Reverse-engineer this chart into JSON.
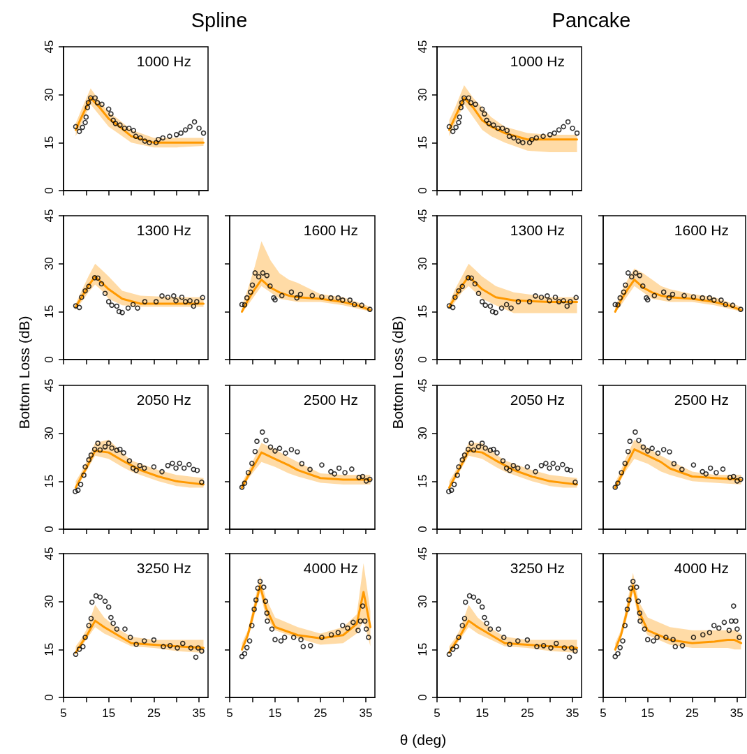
{
  "chart_data": [
    {
      "type": "scatter",
      "title": "Spline",
      "annotations": [
        "1000 Hz"
      ],
      "xlim": [
        5,
        37
      ],
      "ylim": [
        0,
        45
      ],
      "xticks": [
        5,
        {
          "value": 10,
          "label": null
        },
        15,
        {
          "value": 20,
          "label": null
        },
        25,
        {
          "value": 30,
          "label": null
        },
        35
      ],
      "yticks": [
        0,
        15,
        30,
        45
      ],
      "tick_labels": "y",
      "series": [
        {
          "type": "line",
          "color": "#ff9900",
          "x": [
            7.7,
            9,
            11,
            13,
            15,
            17,
            20,
            25,
            30,
            36
          ],
          "values": [
            19,
            23,
            29,
            26,
            22.5,
            20.5,
            17,
            15,
            15,
            15
          ],
          "lower": [
            17,
            21,
            27,
            23.5,
            20,
            18,
            15,
            13.5,
            13.5,
            14
          ],
          "upper": [
            21,
            25.5,
            32,
            28,
            24.5,
            22.5,
            19,
            16.5,
            16.5,
            16.5
          ]
        },
        {
          "type": "scatter",
          "color": "#000000",
          "marker": "circle",
          "x": [
            7.7,
            8.5,
            9.2,
            9.8,
            10.0,
            10.3,
            10.5,
            11,
            12,
            12.5,
            13.5,
            15,
            15.5,
            16,
            16.5,
            17.5,
            18.5,
            19.5,
            20.5,
            21,
            22,
            23,
            24,
            25.5,
            26,
            27,
            28.5,
            30,
            31,
            32,
            33,
            34,
            35,
            36
          ],
          "values": [
            20,
            18.5,
            19.8,
            21.3,
            23,
            26,
            27.5,
            29,
            29,
            27.5,
            27,
            25.5,
            24,
            22,
            21,
            20.5,
            19.5,
            19.5,
            18.8,
            17,
            16.5,
            15.5,
            15,
            15,
            16,
            16.5,
            17,
            17.5,
            18,
            19,
            20,
            21.5,
            19.5,
            18
          ]
        }
      ]
    },
    {
      "type": "scatter",
      "title": "Pancake",
      "annotations": [
        "1000 Hz"
      ],
      "xlim": [
        5,
        37
      ],
      "ylim": [
        0,
        45
      ],
      "xticks": [
        5,
        {
          "value": 10,
          "label": null
        },
        15,
        {
          "value": 20,
          "label": null
        },
        25,
        {
          "value": 30,
          "label": null
        },
        35
      ],
      "yticks": [
        0,
        15,
        30,
        45
      ],
      "tick_labels": "y",
      "series": [
        {
          "type": "line",
          "color": "#ff9900",
          "x": [
            7.7,
            9,
            11,
            13,
            15,
            17,
            20,
            25,
            30,
            36
          ],
          "values": [
            19,
            23,
            29,
            26,
            22,
            20,
            18,
            16,
            16,
            16
          ],
          "lower": [
            17,
            21,
            27,
            23,
            19,
            17,
            15,
            12.5,
            12,
            12
          ],
          "upper": [
            22,
            26,
            33,
            29,
            26,
            23,
            20,
            18,
            17.5,
            17.5
          ]
        },
        {
          "type": "scatter",
          "color": "#000000",
          "marker": "circle",
          "x": [
            7.7,
            8.5,
            9.2,
            9.8,
            10.0,
            10.3,
            10.5,
            11,
            12,
            12.5,
            13.5,
            15,
            15.5,
            16,
            16.5,
            17.5,
            18.5,
            19.5,
            20.5,
            21,
            22,
            23,
            24,
            25.5,
            26,
            27,
            28.5,
            30,
            31,
            32,
            33,
            34,
            35,
            36
          ],
          "values": [
            20,
            18.5,
            19.8,
            21.3,
            23,
            26,
            27.5,
            29,
            29,
            27.5,
            27,
            25.5,
            24,
            22,
            21,
            20.5,
            19.5,
            19.5,
            18.8,
            17,
            16.5,
            15.5,
            15,
            15,
            16,
            16.5,
            17,
            17.5,
            18,
            19,
            20,
            21.5,
            19.5,
            18
          ]
        }
      ]
    },
    {
      "type": "scatter",
      "ylabel": "Bottom Loss (dB)",
      "annotations": [
        "1300 Hz"
      ],
      "xlim": [
        5,
        37
      ],
      "ylim": [
        0,
        45
      ],
      "xticks": [
        5,
        {
          "value": 10,
          "label": null
        },
        15,
        {
          "value": 20,
          "label": null
        },
        25,
        {
          "value": 30,
          "label": null
        },
        35
      ],
      "yticks": [
        0,
        15,
        30,
        45
      ],
      "tick_labels": "y",
      "series": [
        {
          "type": "line",
          "color": "#ff9900",
          "x": [
            7.7,
            9,
            10.5,
            12,
            13.5,
            15,
            18,
            22,
            30,
            36
          ],
          "values": [
            16.5,
            19.5,
            23,
            26,
            24,
            22,
            19,
            17.5,
            17.5,
            17.5
          ],
          "lower": [
            15.5,
            18,
            21,
            23.5,
            21.5,
            19,
            17,
            16.5,
            16.5,
            16.5
          ],
          "upper": [
            17.5,
            21.5,
            26,
            30,
            28,
            26,
            21.5,
            20,
            19.5,
            19.5
          ]
        },
        {
          "type": "scatter",
          "color": "#000000",
          "marker": "circle",
          "x": [
            7.7,
            8.5,
            9,
            9.8,
            10.6,
            11.9,
            12.6,
            13.4,
            14.2,
            15,
            15.7,
            16.8,
            17.3,
            18,
            19.3,
            20.4,
            21.4,
            23,
            25.5,
            26.8,
            28.1,
            29.4,
            29.9,
            31.2,
            32,
            33,
            33.8,
            34.5,
            35.8
          ],
          "values": [
            16.8,
            16.3,
            19.5,
            21.5,
            22.9,
            25.6,
            25.5,
            23.7,
            20.7,
            18.1,
            17,
            16.7,
            15,
            14.7,
            16.1,
            17.2,
            16.1,
            18.1,
            18.1,
            19.9,
            19.5,
            19.9,
            18.4,
            19.5,
            18.1,
            18.4,
            16.7,
            18.1,
            19.4
          ]
        }
      ]
    },
    {
      "type": "scatter",
      "annotations": [
        "1600 Hz"
      ],
      "xlim": [
        5,
        37
      ],
      "ylim": [
        0,
        45
      ],
      "xticks": [
        5,
        {
          "value": 10,
          "label": null
        },
        15,
        {
          "value": 20,
          "label": null
        },
        25,
        {
          "value": 30,
          "label": null
        },
        35
      ],
      "yticks": [
        0,
        15,
        30,
        45
      ],
      "tick_labels": false,
      "series": [
        {
          "type": "line",
          "color": "#ff9900",
          "x": [
            7.7,
            9,
            10.5,
            12,
            14,
            16,
            18,
            20,
            25,
            30,
            33,
            36
          ],
          "values": [
            15,
            18.5,
            22,
            25,
            22.5,
            21,
            20,
            19.5,
            19,
            18,
            17,
            15.5
          ],
          "lower": [
            14.5,
            17,
            20,
            23,
            21,
            19,
            18.5,
            18,
            18,
            17,
            16,
            15
          ],
          "upper": [
            17,
            22,
            29,
            37,
            31,
            27,
            25,
            24,
            20.5,
            19.5,
            18,
            16.5
          ]
        },
        {
          "type": "scatter",
          "color": "#000000",
          "marker": "circle",
          "x": [
            7.7,
            8.3,
            8.8,
            9.6,
            10,
            10.6,
            11.4,
            12.3,
            13.2,
            13.9,
            14.7,
            15,
            16.5,
            18.6,
            19.8,
            20.6,
            23.2,
            25.3,
            27.3,
            28.9,
            29.9,
            31.5,
            32.5,
            34.1,
            35.9
          ],
          "values": [
            17.2,
            17.1,
            19.3,
            21.1,
            23.3,
            27.1,
            25.9,
            27.1,
            26.3,
            23,
            19.3,
            18.7,
            20,
            21.1,
            19.3,
            20.4,
            20,
            19.6,
            19.3,
            19.3,
            18.6,
            18.6,
            17.2,
            17,
            15.7
          ]
        }
      ]
    },
    {
      "type": "scatter",
      "ylabel": "Bottom Loss (dB)",
      "annotations": [
        "1300 Hz"
      ],
      "xlim": [
        5,
        37
      ],
      "ylim": [
        0,
        45
      ],
      "xticks": [
        5,
        {
          "value": 10,
          "label": null
        },
        15,
        {
          "value": 20,
          "label": null
        },
        25,
        {
          "value": 30,
          "label": null
        },
        35
      ],
      "yticks": [
        0,
        15,
        30,
        45
      ],
      "tick_labels": "y",
      "series": [
        {
          "type": "line",
          "color": "#ff9900",
          "x": [
            7.7,
            9,
            10.5,
            12,
            13.5,
            15,
            18,
            22,
            30,
            36
          ],
          "values": [
            16.5,
            19.5,
            23,
            26,
            24,
            22,
            19.5,
            18.5,
            18,
            18
          ],
          "lower": [
            15.5,
            18,
            21,
            23,
            21,
            19,
            17,
            14.5,
            14.5,
            14.5
          ],
          "upper": [
            17.5,
            22,
            26,
            30,
            28,
            26,
            23,
            21,
            19.5,
            19.5
          ]
        },
        {
          "type": "scatter",
          "color": "#000000",
          "marker": "circle",
          "x": [
            7.7,
            8.5,
            9,
            9.8,
            10.6,
            11.9,
            12.6,
            13.4,
            14.2,
            15,
            15.7,
            16.8,
            17.3,
            18,
            19.3,
            20.4,
            21.4,
            23,
            25.5,
            26.8,
            28.1,
            29.4,
            29.9,
            31.2,
            32,
            33,
            33.8,
            34.5,
            35.8
          ],
          "values": [
            16.8,
            16.3,
            19.5,
            21.5,
            22.9,
            25.6,
            25.5,
            23.7,
            20.7,
            18.1,
            17,
            16.7,
            15,
            14.7,
            16.1,
            17.2,
            16.1,
            18.1,
            18.1,
            19.9,
            19.5,
            19.9,
            18.4,
            19.5,
            18.1,
            18.4,
            16.7,
            18.1,
            19.4
          ]
        }
      ]
    },
    {
      "type": "scatter",
      "annotations": [
        "1600 Hz"
      ],
      "xlim": [
        5,
        37
      ],
      "ylim": [
        0,
        45
      ],
      "xticks": [
        5,
        {
          "value": 10,
          "label": null
        },
        15,
        {
          "value": 20,
          "label": null
        },
        25,
        {
          "value": 30,
          "label": null
        },
        35
      ],
      "yticks": [
        0,
        15,
        30,
        45
      ],
      "tick_labels": false,
      "series": [
        {
          "type": "line",
          "color": "#ff9900",
          "x": [
            7.7,
            9,
            10.5,
            12,
            14,
            16,
            18,
            20,
            25,
            30,
            33,
            36
          ],
          "values": [
            15,
            18.5,
            22,
            25,
            22.5,
            21,
            20,
            19.5,
            19,
            18,
            17,
            15.5
          ],
          "lower": [
            14.5,
            17,
            20,
            23,
            21,
            19,
            18.5,
            18,
            18,
            17,
            16,
            15
          ],
          "upper": [
            16.5,
            21,
            25,
            28.5,
            27,
            25,
            23,
            22,
            20.5,
            19.5,
            18,
            16.5
          ]
        },
        {
          "type": "scatter",
          "color": "#000000",
          "marker": "circle",
          "x": [
            7.7,
            8.3,
            8.8,
            9.6,
            10,
            10.6,
            11.4,
            12.3,
            13.2,
            13.9,
            14.7,
            15,
            16.5,
            18.6,
            19.8,
            20.6,
            23.2,
            25.3,
            27.3,
            28.9,
            29.9,
            31.5,
            32.5,
            34.1,
            35.9
          ],
          "values": [
            17.2,
            17.1,
            19.3,
            21.1,
            23.3,
            27.1,
            25.9,
            27.1,
            26.3,
            23,
            19.3,
            18.7,
            20,
            21.1,
            19.3,
            20.4,
            20,
            19.6,
            19.3,
            19.3,
            18.6,
            18.6,
            17.2,
            17,
            15.7
          ]
        }
      ]
    },
    {
      "type": "scatter",
      "annotations": [
        "2050 Hz"
      ],
      "xlim": [
        5,
        37
      ],
      "ylim": [
        0,
        45
      ],
      "xticks": [
        5,
        {
          "value": 10,
          "label": null
        },
        15,
        {
          "value": 20,
          "label": null
        },
        25,
        {
          "value": 30,
          "label": null
        },
        35
      ],
      "yticks": [
        0,
        15,
        30,
        45
      ],
      "tick_labels": "y",
      "series": [
        {
          "type": "line",
          "color": "#ff9900",
          "x": [
            7.7,
            9,
            10,
            12,
            15,
            18,
            20,
            22,
            26,
            30,
            33,
            36
          ],
          "values": [
            13,
            16.5,
            19,
            24.5,
            24,
            21.5,
            20,
            18.5,
            16.5,
            15,
            14.5,
            14
          ],
          "lower": [
            12.5,
            15.5,
            18,
            23,
            22,
            19.5,
            18,
            17,
            15,
            13.5,
            13,
            13
          ],
          "upper": [
            15,
            18,
            21,
            27,
            28,
            24,
            21.5,
            20.5,
            18.5,
            17,
            16.5,
            16
          ]
        },
        {
          "type": "scatter",
          "color": "#000000",
          "marker": "circle",
          "x": [
            7.6,
            8.2,
            8.8,
            9.5,
            9.8,
            10.6,
            11.1,
            11.9,
            12.6,
            13.1,
            14.2,
            15,
            15.7,
            16.8,
            17.5,
            18.3,
            19.6,
            20.4,
            21.1,
            21.9,
            22.9,
            25,
            26.8,
            28.1,
            29.1,
            29.9,
            30.7,
            31.7,
            32.8,
            33.8,
            34.6,
            35.6
          ],
          "values": [
            11.8,
            12.2,
            14,
            16.9,
            19.5,
            21.7,
            23.2,
            25,
            26.9,
            24.8,
            25.8,
            26.9,
            25.4,
            24.7,
            25,
            23.9,
            21.4,
            19.1,
            18.4,
            19.9,
            19.1,
            19.5,
            18,
            19.9,
            20.6,
            19.1,
            20.6,
            19.1,
            20.2,
            18.7,
            18.4,
            14.7
          ]
        }
      ]
    },
    {
      "type": "scatter",
      "annotations": [
        "2500 Hz"
      ],
      "xlim": [
        5,
        37
      ],
      "ylim": [
        0,
        45
      ],
      "xticks": [
        5,
        {
          "value": 10,
          "label": null
        },
        15,
        {
          "value": 20,
          "label": null
        },
        25,
        {
          "value": 30,
          "label": null
        },
        35
      ],
      "yticks": [
        0,
        15,
        30,
        45
      ],
      "tick_labels": false,
      "series": [
        {
          "type": "line",
          "color": "#ff9900",
          "x": [
            7.7,
            9,
            10,
            12,
            15,
            18,
            20,
            25,
            30,
            36
          ],
          "values": [
            13,
            16.5,
            19,
            24,
            22,
            20,
            18.5,
            16,
            15.5,
            15.5
          ],
          "lower": [
            12.5,
            15.5,
            17.5,
            21,
            19.5,
            17.5,
            16.5,
            14.5,
            14,
            14
          ],
          "upper": [
            14.5,
            18,
            21,
            27,
            25,
            22.5,
            21,
            17.5,
            17,
            17
          ]
        },
        {
          "type": "scatter",
          "color": "#000000",
          "marker": "circle",
          "x": [
            7.7,
            8.3,
            9.1,
            9.9,
            10.6,
            11,
            12.2,
            13,
            14,
            15,
            16,
            17.3,
            18.6,
            19.9,
            20.9,
            22.7,
            25.3,
            27.3,
            28.1,
            29.1,
            30.4,
            31.9,
            33.5,
            34.3,
            35.1,
            35.9
          ],
          "values": [
            13.1,
            14.4,
            17.7,
            20.6,
            24.3,
            27.5,
            30.4,
            27.8,
            25.7,
            24.5,
            25.3,
            23.8,
            24.9,
            24.2,
            20.5,
            18.7,
            20.1,
            18,
            17.3,
            19.1,
            17.7,
            18.8,
            16.2,
            16.5,
            15.1,
            15.6
          ]
        }
      ]
    },
    {
      "type": "scatter",
      "annotations": [
        "2050 Hz"
      ],
      "xlim": [
        5,
        37
      ],
      "ylim": [
        0,
        45
      ],
      "xticks": [
        5,
        {
          "value": 10,
          "label": null
        },
        15,
        {
          "value": 20,
          "label": null
        },
        25,
        {
          "value": 30,
          "label": null
        },
        35
      ],
      "yticks": [
        0,
        15,
        30,
        45
      ],
      "tick_labels": "y",
      "series": [
        {
          "type": "line",
          "color": "#ff9900",
          "x": [
            7.7,
            9,
            10,
            12,
            15,
            18,
            20,
            22,
            26,
            30,
            33,
            36
          ],
          "values": [
            13,
            16.5,
            19,
            24.5,
            24,
            21.5,
            20,
            18.5,
            16.5,
            15,
            14.5,
            14
          ],
          "lower": [
            12.5,
            15.5,
            18,
            23,
            22,
            19.5,
            18,
            17,
            15,
            13.5,
            13,
            13
          ],
          "upper": [
            15,
            18,
            21,
            27,
            27,
            23.5,
            21.5,
            20.5,
            18.5,
            17,
            16.5,
            16
          ]
        },
        {
          "type": "scatter",
          "color": "#000000",
          "marker": "circle",
          "x": [
            7.6,
            8.2,
            8.8,
            9.5,
            9.8,
            10.6,
            11.1,
            11.9,
            12.6,
            13.1,
            14.2,
            15,
            15.7,
            16.8,
            17.5,
            18.3,
            19.6,
            20.4,
            21.1,
            21.9,
            22.9,
            25,
            26.8,
            28.1,
            29.1,
            29.9,
            30.7,
            31.7,
            32.8,
            33.8,
            34.6,
            35.6
          ],
          "values": [
            11.8,
            12.2,
            14,
            16.9,
            19.5,
            21.7,
            23.2,
            25,
            26.9,
            24.8,
            25.8,
            26.9,
            25.4,
            24.7,
            25,
            23.9,
            21.4,
            19.1,
            18.4,
            19.9,
            19.1,
            19.5,
            18,
            19.9,
            20.6,
            19.1,
            20.6,
            19.1,
            20.2,
            18.7,
            18.4,
            14.7
          ]
        }
      ]
    },
    {
      "type": "scatter",
      "annotations": [
        "2500 Hz"
      ],
      "xlim": [
        5,
        37
      ],
      "ylim": [
        0,
        45
      ],
      "xticks": [
        5,
        {
          "value": 10,
          "label": null
        },
        15,
        {
          "value": 20,
          "label": null
        },
        25,
        {
          "value": 30,
          "label": null
        },
        35
      ],
      "yticks": [
        0,
        15,
        30,
        45
      ],
      "tick_labels": false,
      "series": [
        {
          "type": "line",
          "color": "#ff9900",
          "x": [
            7.7,
            9,
            10,
            12,
            15,
            18,
            20,
            25,
            30,
            36
          ],
          "values": [
            13,
            16.5,
            19.5,
            25,
            23,
            21,
            19,
            16.5,
            16,
            15.5
          ],
          "lower": [
            12.5,
            15.5,
            18,
            22,
            20.5,
            18,
            17,
            15,
            14.5,
            14
          ],
          "upper": [
            14.5,
            18.5,
            22,
            28,
            25.5,
            23,
            21.5,
            18,
            17,
            17
          ]
        },
        {
          "type": "scatter",
          "color": "#000000",
          "marker": "circle",
          "x": [
            7.7,
            8.3,
            9.1,
            9.9,
            10.6,
            11,
            12.2,
            13,
            14,
            15,
            16,
            17.3,
            18.6,
            19.9,
            20.9,
            22.7,
            25.3,
            27.3,
            28.1,
            29.1,
            30.4,
            31.9,
            33.5,
            34.3,
            35.1,
            35.9
          ],
          "values": [
            13.1,
            14.4,
            17.7,
            20.6,
            24.3,
            27.5,
            30.4,
            27.8,
            25.7,
            24.5,
            25.3,
            23.8,
            24.9,
            24.2,
            20.5,
            18.7,
            20.1,
            18,
            17.3,
            19.1,
            17.7,
            18.8,
            16.2,
            16.5,
            15.1,
            15.6
          ]
        }
      ]
    },
    {
      "type": "scatter",
      "annotations": [
        "3250 Hz"
      ],
      "xlim": [
        5,
        37
      ],
      "ylim": [
        0,
        45
      ],
      "xticks": [
        5,
        {
          "value": 10,
          "label": null
        },
        15,
        {
          "value": 20,
          "label": null
        },
        25,
        {
          "value": 30,
          "label": null
        },
        35
      ],
      "yticks": [
        0,
        15,
        30,
        45
      ],
      "series": [
        {
          "type": "line",
          "color": "#ff9900",
          "x": [
            7.7,
            9,
            10,
            12,
            14,
            17,
            20,
            25,
            30,
            36
          ],
          "values": [
            14,
            17,
            19,
            24,
            22,
            19.5,
            17,
            16.5,
            16,
            15.5
          ],
          "lower": [
            13.5,
            16,
            18,
            22,
            20,
            18,
            16,
            15.5,
            14.5,
            14
          ],
          "upper": [
            16,
            18.5,
            21,
            29,
            25,
            21.5,
            19,
            18,
            18,
            18
          ]
        },
        {
          "type": "scatter",
          "color": "#000000",
          "marker": "circle",
          "x": [
            7.7,
            8.5,
            9.3,
            9.8,
            10.6,
            11.1,
            11.3,
            12.2,
            13.1,
            14.2,
            15,
            15.5,
            16,
            16.8,
            18.6,
            19.8,
            21.1,
            22.9,
            25,
            27.1,
            28.6,
            30.2,
            31.4,
            33.2,
            34.3,
            34.8,
            35.6
          ],
          "values": [
            13.5,
            15.1,
            15.9,
            18.8,
            22.5,
            24.7,
            29.8,
            31.8,
            31.4,
            30.1,
            28.3,
            25,
            23.2,
            21.4,
            21.4,
            18.8,
            16.6,
            17.7,
            18,
            15.9,
            16.2,
            15.5,
            16.9,
            15.5,
            12.6,
            15.5,
            14.5
          ]
        }
      ]
    },
    {
      "type": "scatter",
      "annotations": [
        "4000 Hz"
      ],
      "xlim": [
        5,
        37
      ],
      "ylim": [
        0,
        45
      ],
      "xticks": [
        5,
        {
          "value": 10,
          "label": null
        },
        15,
        {
          "value": 20,
          "label": null
        },
        25,
        {
          "value": 30,
          "label": null
        },
        35
      ],
      "yticks": [
        0,
        15,
        30,
        45
      ],
      "tick_labels": "x",
      "series": [
        {
          "type": "line",
          "color": "#ff9900",
          "x": [
            7.7,
            9,
            10,
            11.7,
            13,
            15,
            20,
            25,
            30,
            33,
            34.5,
            36
          ],
          "values": [
            15,
            19.5,
            25,
            35,
            28,
            22,
            19.5,
            18.5,
            19.5,
            23,
            33,
            22
          ],
          "lower": [
            14,
            18.5,
            23,
            33,
            25,
            21,
            18.5,
            16.5,
            17,
            20,
            24,
            16
          ],
          "upper": [
            17,
            21,
            27,
            38,
            31,
            25,
            22,
            20,
            22,
            26,
            42,
            27
          ]
        },
        {
          "type": "scatter",
          "color": "#000000",
          "marker": "circle",
          "x": [
            7.7,
            8.3,
            8.8,
            9.4,
            9.9,
            10.4,
            10.8,
            11.2,
            11.7,
            12.5,
            12.9,
            13.2,
            13.3,
            14.3,
            15,
            16.3,
            17.1,
            19.1,
            20.7,
            21.2,
            22.8,
            25.3,
            27.4,
            28.9,
            29.9,
            31,
            32.2,
            33.3,
            33.8,
            34.3,
            34.8,
            35.1,
            35.6
          ],
          "values": [
            12.8,
            13.7,
            15.6,
            17.7,
            22.5,
            27.6,
            30.5,
            34.2,
            36.3,
            34.5,
            30.1,
            26.4,
            23.9,
            21.4,
            18.1,
            17.7,
            18.8,
            18.8,
            18.1,
            15.9,
            16.2,
            18.8,
            19.6,
            20.3,
            22.5,
            21.7,
            23.5,
            21,
            23.9,
            28.6,
            23.9,
            21.4,
            18.8
          ]
        }
      ]
    },
    {
      "type": "scatter",
      "xlabel": "θ (deg)",
      "annotations": [
        "3250 Hz"
      ],
      "xlim": [
        5,
        37
      ],
      "ylim": [
        0,
        45
      ],
      "xticks": [
        5,
        {
          "value": 10,
          "label": null
        },
        15,
        {
          "value": 20,
          "label": null
        },
        25,
        {
          "value": 30,
          "label": null
        },
        35
      ],
      "yticks": [
        0,
        15,
        30,
        45
      ],
      "series": [
        {
          "type": "line",
          "color": "#ff9900",
          "x": [
            7.7,
            9,
            10,
            12,
            14,
            17,
            20,
            25,
            30,
            36
          ],
          "values": [
            14,
            17,
            19,
            24,
            22,
            19.5,
            17,
            16.5,
            16,
            15.5
          ],
          "lower": [
            13.5,
            16,
            18,
            22,
            20,
            18,
            16,
            15.5,
            14.5,
            14
          ],
          "upper": [
            16,
            18.5,
            21,
            29,
            25,
            21.5,
            19,
            18,
            18,
            18
          ]
        },
        {
          "type": "scatter",
          "color": "#000000",
          "marker": "circle",
          "x": [
            7.7,
            8.5,
            9.3,
            9.8,
            10.6,
            11.1,
            11.3,
            12.2,
            13.1,
            14.2,
            15,
            15.5,
            16,
            16.8,
            18.6,
            19.8,
            21.1,
            22.9,
            25,
            27.1,
            28.6,
            30.2,
            31.4,
            33.2,
            34.3,
            34.8,
            35.6
          ],
          "values": [
            13.5,
            15.1,
            15.9,
            18.8,
            22.5,
            24.7,
            29.8,
            31.8,
            31.4,
            30.1,
            28.3,
            25,
            23.2,
            21.4,
            21.4,
            18.8,
            16.6,
            17.7,
            18,
            15.9,
            16.2,
            15.5,
            16.9,
            15.5,
            12.6,
            15.5,
            14.5
          ]
        }
      ]
    },
    {
      "type": "scatter",
      "annotations": [
        "4000 Hz"
      ],
      "xlim": [
        5,
        37
      ],
      "ylim": [
        0,
        45
      ],
      "xticks": [
        5,
        {
          "value": 10,
          "label": null
        },
        15,
        {
          "value": 20,
          "label": null
        },
        25,
        {
          "value": 30,
          "label": null
        },
        35
      ],
      "yticks": [
        0,
        15,
        30,
        45
      ],
      "tick_labels": "x",
      "series": [
        {
          "type": "line",
          "color": "#ff9900",
          "x": [
            7.7,
            9,
            10,
            11.7,
            13,
            15,
            20,
            25,
            30,
            33,
            34.5,
            36
          ],
          "values": [
            15,
            19.5,
            25,
            35,
            27,
            21,
            18,
            17,
            17.5,
            18,
            18,
            17
          ],
          "lower": [
            14,
            18.5,
            23,
            33,
            24,
            19.5,
            16.5,
            15.5,
            15.5,
            15.5,
            15,
            15
          ],
          "upper": [
            17,
            21,
            27,
            39,
            30,
            25,
            22,
            21,
            21,
            21,
            21,
            20
          ]
        },
        {
          "type": "scatter",
          "color": "#000000",
          "marker": "circle",
          "x": [
            7.7,
            8.3,
            8.8,
            9.4,
            9.9,
            10.4,
            10.8,
            11.2,
            11.7,
            12.5,
            12.9,
            13.2,
            13.3,
            14.3,
            15,
            16.3,
            17.1,
            19.1,
            20.7,
            21.2,
            22.8,
            25.3,
            27.4,
            28.9,
            29.9,
            31,
            32.2,
            33.3,
            33.8,
            34.3,
            34.8,
            35.1,
            35.6
          ],
          "values": [
            12.8,
            13.7,
            15.6,
            17.7,
            22.5,
            27.6,
            30.5,
            34.2,
            36.3,
            34.5,
            30.1,
            26.4,
            23.9,
            21.4,
            18.1,
            17.7,
            18.8,
            18.8,
            18.1,
            15.9,
            16.2,
            18.8,
            19.6,
            20.3,
            22.5,
            21.7,
            23.5,
            21,
            23.9,
            28.6,
            23.9,
            21.4,
            18.8
          ]
        }
      ]
    }
  ]
}
